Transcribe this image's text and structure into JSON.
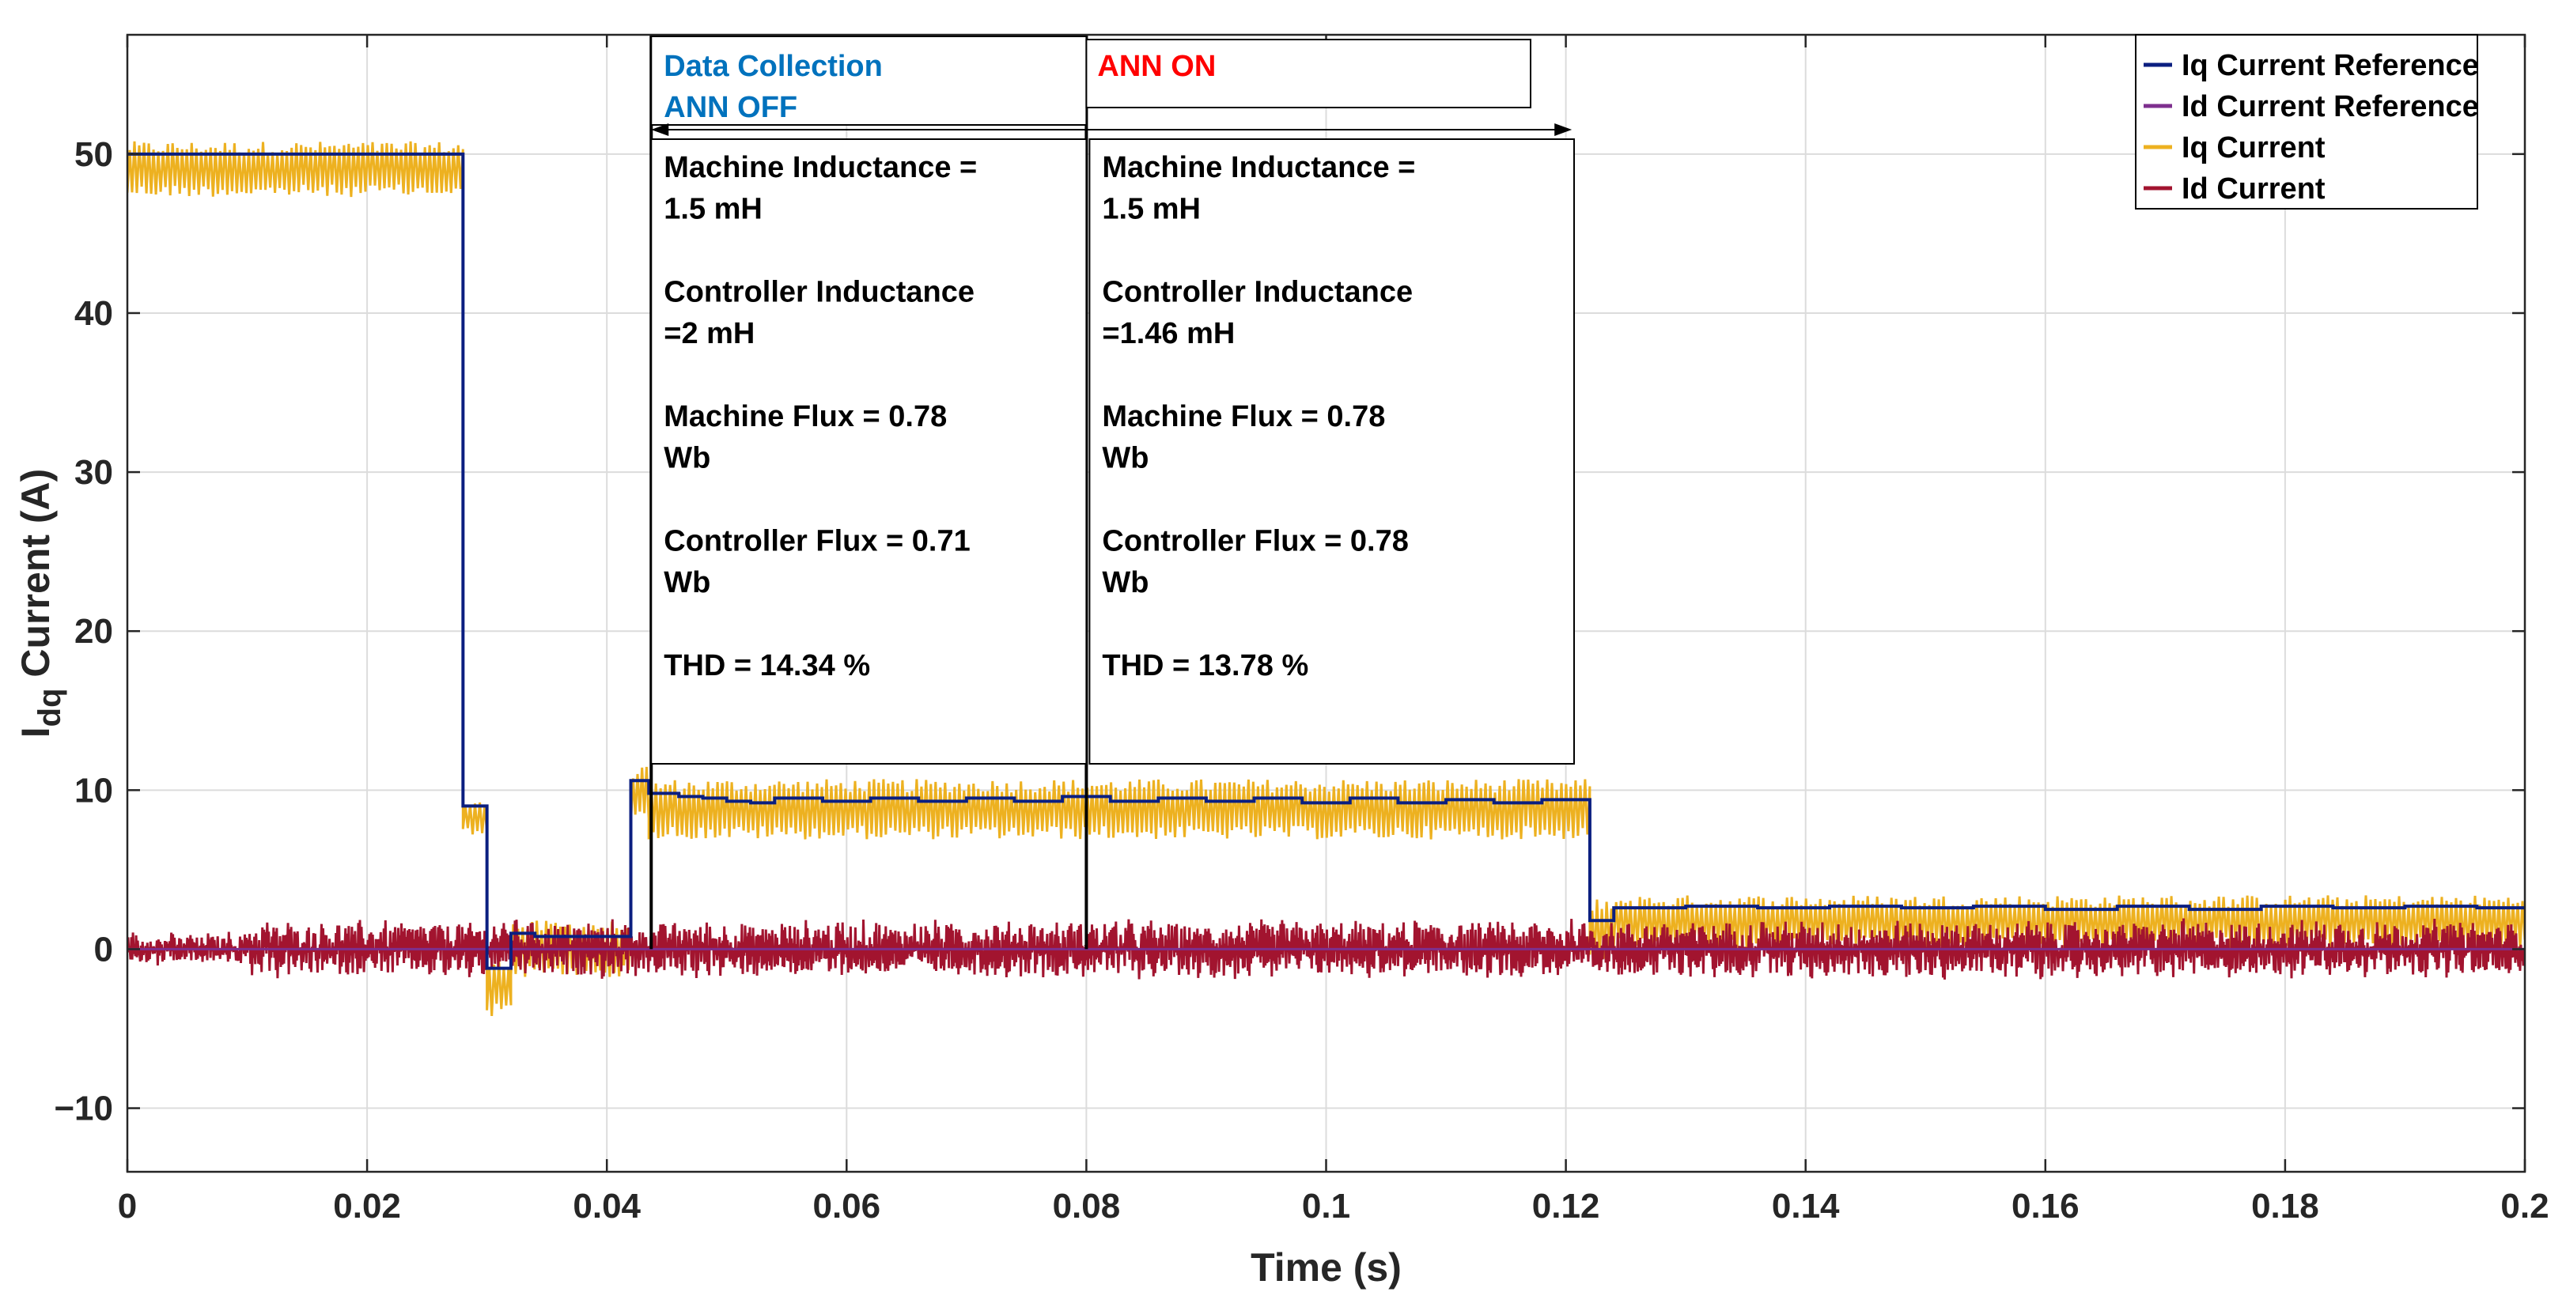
{
  "chart_data": {
    "type": "line",
    "xlabel": "Time (s)",
    "ylabel_main": "I",
    "ylabel_sub": "dq",
    "ylabel_rest": " Current (A)",
    "xlim": [
      0,
      0.2
    ],
    "ylim": [
      -14,
      57.5
    ],
    "xticks": [
      0,
      0.02,
      0.04,
      0.06,
      0.08,
      0.1,
      0.12,
      0.14,
      0.16,
      0.18,
      0.2
    ],
    "xtick_labels": [
      "0",
      "0.02",
      "0.04",
      "0.06",
      "0.08",
      "0.1",
      "0.12",
      "0.14",
      "0.16",
      "0.18",
      "0.2"
    ],
    "yticks": [
      -10,
      0,
      10,
      20,
      30,
      40,
      50
    ],
    "ytick_labels": [
      "−10",
      "0",
      "10",
      "20",
      "30",
      "40",
      "50"
    ],
    "grid": true,
    "legend_position": "top-right",
    "series": [
      {
        "name": "Iq Current Reference",
        "color": "#0b1f80",
        "steps": [
          [
            0,
            50
          ],
          [
            0.028,
            9
          ],
          [
            0.03,
            -1.2
          ],
          [
            0.032,
            1.0
          ],
          [
            0.034,
            0.8
          ],
          [
            0.042,
            10.6
          ],
          [
            0.0435,
            9.8
          ],
          [
            0.046,
            9.6
          ],
          [
            0.048,
            9.5
          ],
          [
            0.05,
            9.3
          ],
          [
            0.052,
            9.2
          ],
          [
            0.054,
            9.5
          ],
          [
            0.058,
            9.3
          ],
          [
            0.062,
            9.5
          ],
          [
            0.066,
            9.3
          ],
          [
            0.07,
            9.5
          ],
          [
            0.074,
            9.3
          ],
          [
            0.078,
            9.6
          ],
          [
            0.082,
            9.3
          ],
          [
            0.086,
            9.5
          ],
          [
            0.09,
            9.3
          ],
          [
            0.094,
            9.5
          ],
          [
            0.098,
            9.2
          ],
          [
            0.102,
            9.5
          ],
          [
            0.106,
            9.2
          ],
          [
            0.11,
            9.4
          ],
          [
            0.114,
            9.2
          ],
          [
            0.118,
            9.4
          ],
          [
            0.122,
            1.8
          ],
          [
            0.124,
            2.6
          ],
          [
            0.13,
            2.7
          ],
          [
            0.136,
            2.6
          ],
          [
            0.142,
            2.7
          ],
          [
            0.148,
            2.6
          ],
          [
            0.154,
            2.7
          ],
          [
            0.16,
            2.5
          ],
          [
            0.166,
            2.7
          ],
          [
            0.172,
            2.5
          ],
          [
            0.178,
            2.7
          ],
          [
            0.184,
            2.6
          ],
          [
            0.19,
            2.7
          ],
          [
            0.196,
            2.6
          ],
          [
            0.2,
            2.6
          ]
        ]
      },
      {
        "name": "Id Current Reference",
        "color": "#7e2f8e",
        "steps": [
          [
            0,
            0
          ],
          [
            0.2,
            0
          ]
        ]
      },
      {
        "name": "Iq Current",
        "color": "#edb120",
        "bands": [
          [
            0,
            0.028,
            47.3,
            50.8
          ],
          [
            0.028,
            0.03,
            7.2,
            9.3
          ],
          [
            0.03,
            0.032,
            -4.3,
            -0.4
          ],
          [
            0.032,
            0.042,
            -1.8,
            1.8
          ],
          [
            0.042,
            0.0435,
            8.0,
            11.5
          ],
          [
            0.0435,
            0.122,
            6.9,
            10.7
          ],
          [
            0.122,
            0.124,
            -0.8,
            3.2
          ],
          [
            0.124,
            0.2,
            0.0,
            3.4
          ]
        ]
      },
      {
        "name": "Id Current",
        "color": "#a2142f",
        "oscillation": {
          "amplitude": 1.8,
          "period": 0.002,
          "min": -2.2,
          "max": 2.0
        }
      }
    ],
    "annotations": {
      "region1_title_line1": "Data Collection",
      "region1_title_line2": "ANN OFF",
      "region1_title_color": "#0072bd",
      "region2_title": "ANN ON",
      "region2_title_color": "#ff0000",
      "region_start_x": 0.0437,
      "region_split_x": 0.08,
      "region_end_x": 0.1205,
      "box1_lines": [
        "Machine Inductance =",
        "1.5 mH",
        "",
        "Controller Inductance",
        "=2 mH",
        "",
        "Machine Flux = 0.78",
        "Wb",
        "",
        "Controller Flux = 0.71",
        "Wb",
        "",
        "THD  = 14.34 %"
      ],
      "box2_lines": [
        "Machine Inductance =",
        "1.5 mH",
        "",
        "Controller Inductance",
        "=1.46 mH",
        "",
        "Machine Flux = 0.78",
        "Wb",
        "",
        "Controller Flux = 0.78",
        "Wb",
        "",
        "THD  = 13.78 %"
      ]
    }
  }
}
